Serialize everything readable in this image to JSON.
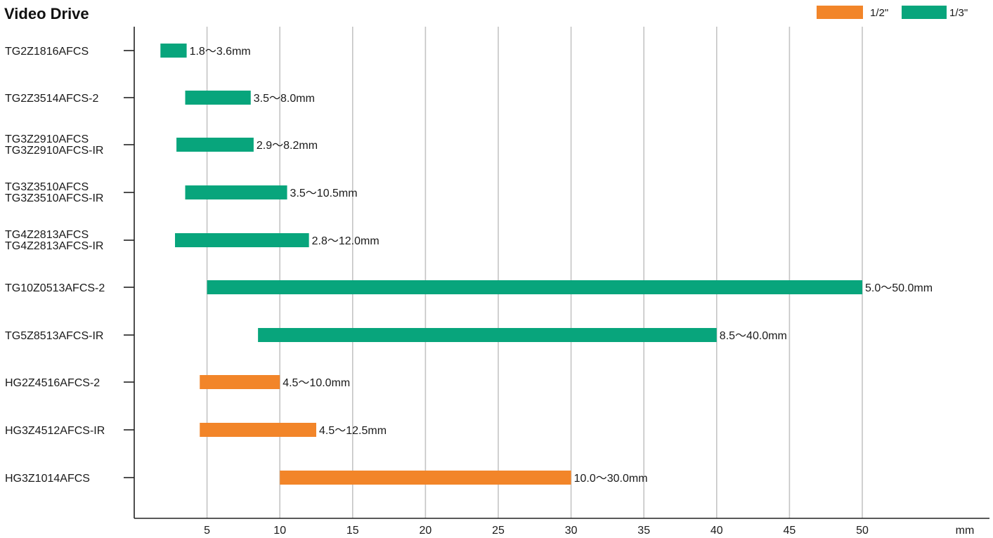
{
  "chart_data": {
    "type": "bar",
    "orientation": "horizontal-range",
    "title": "Video Drive",
    "xlabel": "mm",
    "xlim": [
      0,
      53
    ],
    "x_ticks": [
      5,
      10,
      15,
      20,
      25,
      30,
      35,
      40,
      45,
      50
    ],
    "grid": true,
    "legend_position": "top-right",
    "legend": [
      {
        "key": "half",
        "label": "1/2\"",
        "color": "#f28529"
      },
      {
        "key": "third",
        "label": "1/3\"",
        "color": "#08a57c"
      }
    ],
    "rows": [
      {
        "labels": [
          "TG2Z1816AFCS"
        ],
        "start": 1.8,
        "end": 3.6,
        "series": "third",
        "value_label": "1.8〜3.6mm"
      },
      {
        "labels": [
          "TG2Z3514AFCS-2"
        ],
        "start": 3.5,
        "end": 8.0,
        "series": "third",
        "value_label": "3.5〜8.0mm"
      },
      {
        "labels": [
          "TG3Z2910AFCS",
          "TG3Z2910AFCS-IR"
        ],
        "start": 2.9,
        "end": 8.2,
        "series": "third",
        "value_label": "2.9〜8.2mm"
      },
      {
        "labels": [
          "TG3Z3510AFCS",
          "TG3Z3510AFCS-IR"
        ],
        "start": 3.5,
        "end": 10.5,
        "series": "third",
        "value_label": "3.5〜10.5mm"
      },
      {
        "labels": [
          "TG4Z2813AFCS",
          "TG4Z2813AFCS-IR"
        ],
        "start": 2.8,
        "end": 12.0,
        "series": "third",
        "value_label": "2.8〜12.0mm"
      },
      {
        "labels": [
          "TG10Z0513AFCS-2"
        ],
        "start": 5.0,
        "end": 50.0,
        "series": "third",
        "value_label": "5.0〜50.0mm"
      },
      {
        "labels": [
          "TG5Z8513AFCS-IR"
        ],
        "start": 8.5,
        "end": 40.0,
        "series": "third",
        "value_label": "8.5〜40.0mm"
      },
      {
        "labels": [
          "HG2Z4516AFCS-2"
        ],
        "start": 4.5,
        "end": 10.0,
        "series": "half",
        "value_label": "4.5〜10.0mm"
      },
      {
        "labels": [
          "HG3Z4512AFCS-IR"
        ],
        "start": 4.5,
        "end": 12.5,
        "series": "half",
        "value_label": "4.5〜12.5mm"
      },
      {
        "labels": [
          "HG3Z1014AFCS"
        ],
        "start": 10.0,
        "end": 30.0,
        "series": "half",
        "value_label": "10.0〜30.0mm"
      }
    ]
  }
}
